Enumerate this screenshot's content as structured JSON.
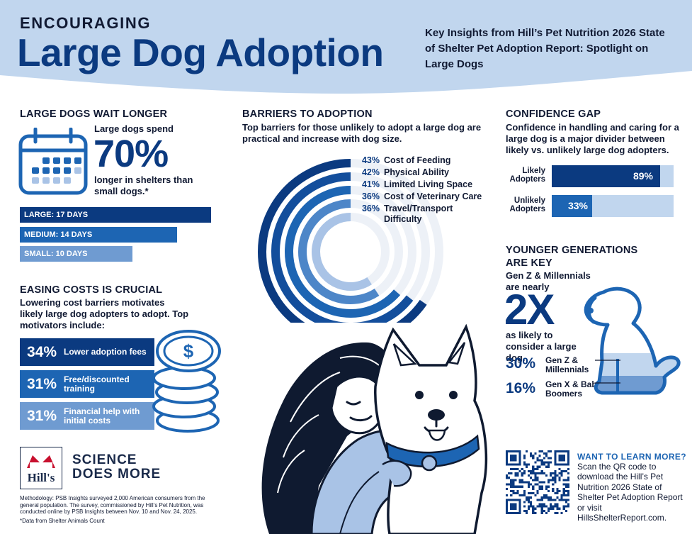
{
  "header": {
    "kicker": "ENCOURAGING",
    "title": "Large Dog Adoption",
    "subtitle": "Key Insights from Hill’s Pet Nutrition 2026 State of Shelter Pet Adoption Report: Spotlight on Large Dogs"
  },
  "wait_longer": {
    "heading": "LARGE DOGS WAIT LONGER",
    "pre": "Large dogs spend",
    "big": "70%",
    "post": "longer in shelters than small dogs.*",
    "bars": [
      {
        "label": "LARGE: 17 DAYS",
        "days": 17,
        "color": "#0b3a80"
      },
      {
        "label": "MEDIUM: 14 DAYS",
        "days": 14,
        "color": "#1d65b3"
      },
      {
        "label": "SMALL: 10 DAYS",
        "days": 10,
        "color": "#6f9bd1"
      }
    ]
  },
  "easing": {
    "heading": "EASING COSTS IS CRUCIAL",
    "text": "Lowering cost barriers motivates likely large dog adopters to adopt. Top motivators include:",
    "items": [
      {
        "pct": "34%",
        "label": "Lower adoption fees",
        "color": "#0b3a80"
      },
      {
        "pct": "31%",
        "label": "Free/discounted training",
        "color": "#1d65b3"
      },
      {
        "pct": "31%",
        "label": "Financial help with initial costs",
        "color": "#6f9bd1"
      }
    ]
  },
  "brand": {
    "logo": "Hill's",
    "tagline_1": "SCIENCE",
    "tagline_2": "DOES MORE"
  },
  "footnotes": {
    "methodology": "Methodology: PSB Insights surveyed 2,000 American consumers from the general population. The survey, commissioned by Hill’s Pet Nutrition, was conducted online by PSB Insights between Nov. 10 and Nov. 24, 2025.",
    "source": "*Data from Shelter Animals Count"
  },
  "barriers": {
    "heading": "BARRIERS TO ADOPTION",
    "text": "Top barriers for those unlikely to adopt a large dog are practical and increase with dog size.",
    "items": [
      {
        "pct": "43%",
        "value": 43,
        "label": "Cost of Feeding",
        "color": "#0b3a80"
      },
      {
        "pct": "42%",
        "value": 42,
        "label": "Physical Ability",
        "color": "#134e9c"
      },
      {
        "pct": "41%",
        "value": 41,
        "label": "Limited Living Space",
        "color": "#1d65b3"
      },
      {
        "pct": "36%",
        "value": 36,
        "label": "Cost of Veterinary Care",
        "color": "#4d86c8"
      },
      {
        "pct": "36%",
        "value": 36,
        "label": "Travel/Transport Difficulty",
        "color": "#a9c3e6"
      }
    ]
  },
  "confidence": {
    "heading": "CONFIDENCE GAP",
    "text": "Confidence in handling and caring for a large dog is a major divider between likely vs. unlikely large dog adopters.",
    "rows": [
      {
        "label": "Likely Adopters",
        "pct": "89%",
        "value": 89,
        "color": "#0b3a80"
      },
      {
        "label": "Unlikely Adopters",
        "pct": "33%",
        "value": 33,
        "color": "#1d65b3"
      }
    ]
  },
  "younger": {
    "heading": "YOUNGER GENERATIONS ARE KEY",
    "pre": "Gen Z & Millennials are nearly",
    "big": "2X",
    "post": "as likely to consider a large dog.",
    "stats": [
      {
        "pct": "30%",
        "label": "Gen Z & Millennials",
        "value": 30
      },
      {
        "pct": "16%",
        "label": "Gen X & Baby Boomers",
        "value": 16
      }
    ]
  },
  "learn_more": {
    "heading": "WANT TO LEARN MORE?",
    "text": "Scan the QR code to download the Hill’s Pet Nutrition 2026 State of Shelter Pet Adoption Report or visit HillsShelterReport.com."
  },
  "colors": {
    "navy": "#0b3a80",
    "mid_blue": "#1d65b3",
    "light_blue": "#a9c3e6",
    "header_bg": "#c1d6ee",
    "ink": "#111a33"
  }
}
